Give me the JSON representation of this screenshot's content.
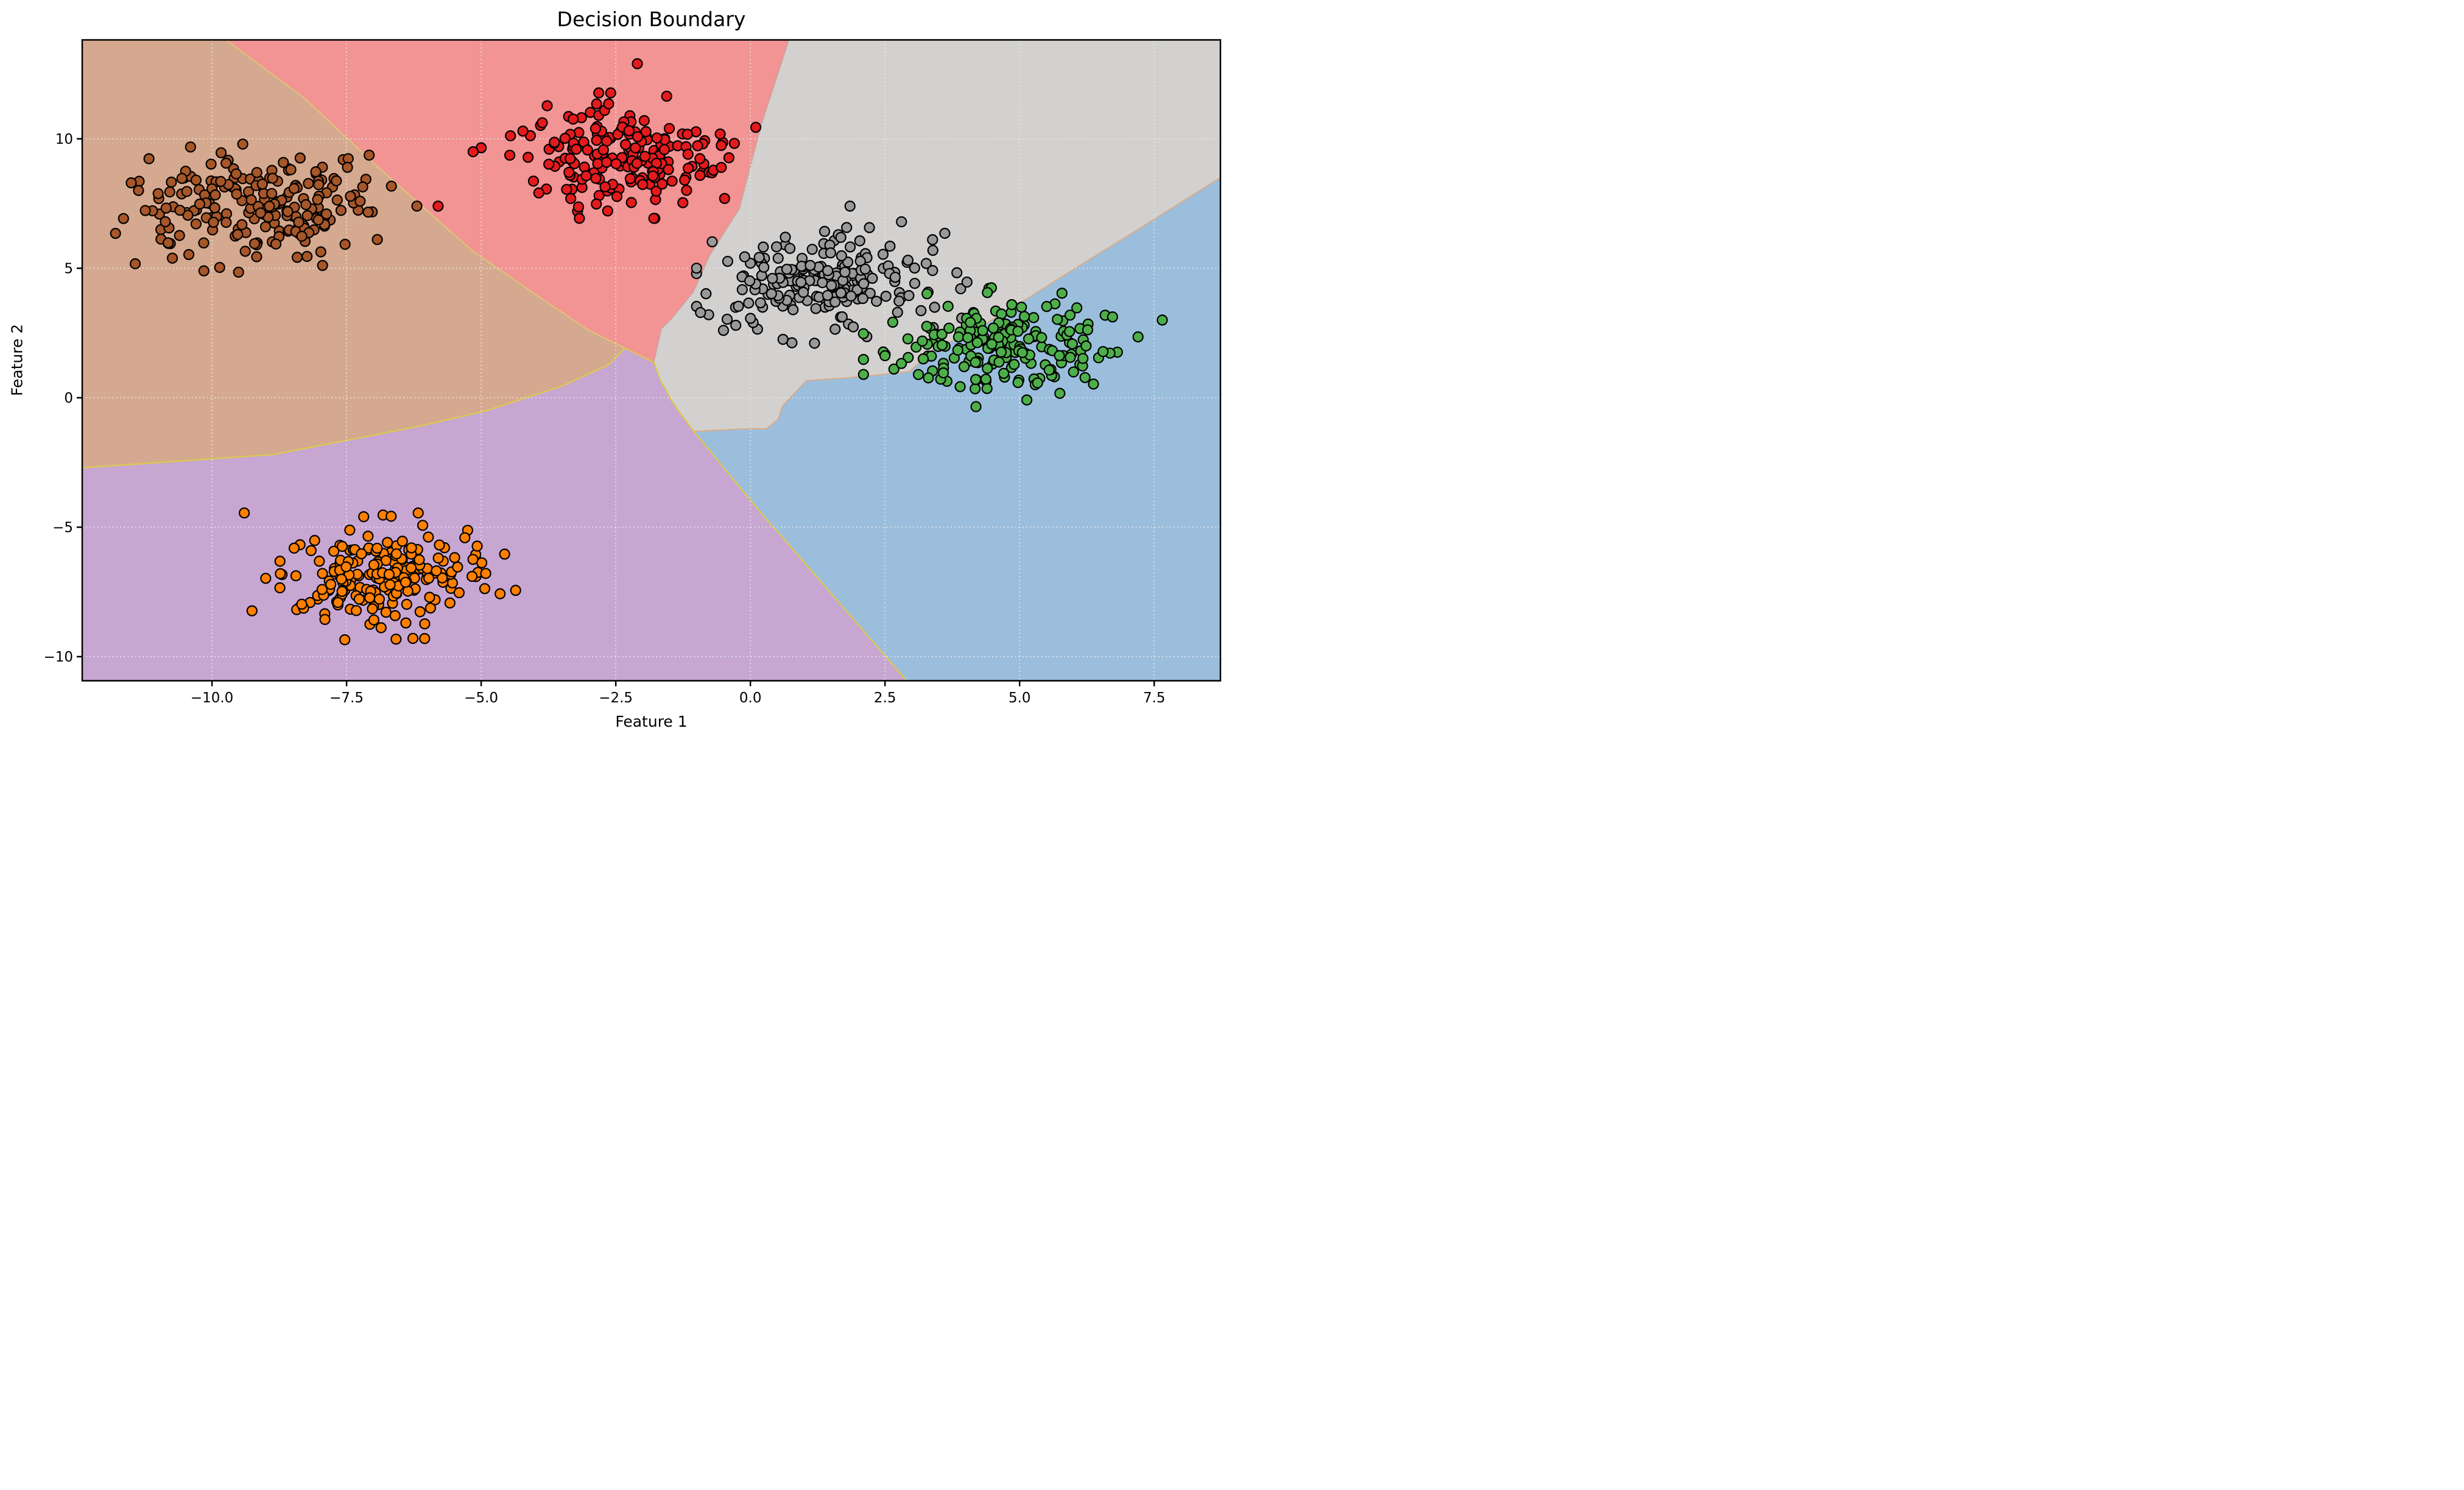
{
  "chart_data": {
    "type": "scatter",
    "subtype": "decision-boundary-classification",
    "title": "Decision Boundary",
    "xlabel": "Feature 1",
    "ylabel": "Feature 2",
    "xlim": [
      -12.41,
      8.73
    ],
    "ylim": [
      -10.93,
      13.82
    ],
    "xticks": [
      -10.0,
      -7.5,
      -5.0,
      -2.5,
      0.0,
      2.5,
      5.0,
      7.5
    ],
    "xtick_labels": [
      "−10.0",
      "−7.5",
      "−5.0",
      "−2.5",
      "0.0",
      "2.5",
      "5.0",
      "7.5"
    ],
    "yticks": [
      10,
      5,
      0,
      -5,
      -10
    ],
    "ytick_labels": [
      "10",
      "5",
      "0",
      "−5",
      "−10"
    ],
    "grid": {
      "style": "dotted",
      "color": "rgba(235,235,235,0.75)"
    },
    "axes_color": "#000000",
    "background_color": "#ffffff",
    "legend": "none",
    "marker": {
      "radius": 8,
      "edge_color": "#000000",
      "edge_width": 2.2
    },
    "regions": [
      {
        "name": "salmon",
        "class_color": "#e41a1c",
        "fill": "#f29394",
        "stroke": "none",
        "stroke_width": 0,
        "points": [
          [
            -10.05,
            14.3
          ],
          [
            0.79,
            14.3
          ],
          [
            0.72,
            13.82
          ],
          [
            0.2,
            10.5
          ],
          [
            -0.2,
            7.3
          ],
          [
            -0.75,
            5.5
          ],
          [
            -1.06,
            4.07
          ],
          [
            -1.46,
            3.05
          ],
          [
            -1.65,
            2.66
          ],
          [
            -1.79,
            1.36
          ],
          [
            -2.33,
            1.92
          ],
          [
            -3.0,
            2.6
          ],
          [
            -4.0,
            4.0
          ],
          [
            -5.16,
            5.67
          ],
          [
            -6.87,
            8.82
          ],
          [
            -8.3,
            11.6
          ]
        ]
      },
      {
        "name": "tan",
        "class_color": "#a65628",
        "fill": "#d5a98f",
        "stroke": "rgba(222,205,110,0.85)",
        "stroke_width": 2,
        "points": [
          [
            -12.9,
            14.3
          ],
          [
            -10.05,
            14.3
          ],
          [
            -8.3,
            11.6
          ],
          [
            -6.87,
            8.82
          ],
          [
            -5.16,
            5.67
          ],
          [
            -4.0,
            4.0
          ],
          [
            -3.0,
            2.6
          ],
          [
            -2.33,
            1.92
          ],
          [
            -2.63,
            1.28
          ],
          [
            -3.5,
            0.45
          ],
          [
            -4.92,
            -0.51
          ],
          [
            -6.1,
            -1.08
          ],
          [
            -8.85,
            -2.19
          ],
          [
            -12.0,
            -2.65
          ],
          [
            -12.91,
            -2.77
          ]
        ]
      },
      {
        "name": "gray",
        "class_color": "#999999",
        "fill": "#d2d1cf",
        "stroke": "rgba(160,180,160,0.5)",
        "stroke_width": 1.6,
        "points": [
          [
            0.79,
            14.3
          ],
          [
            9.1,
            14.3
          ],
          [
            9.1,
            8.95
          ],
          [
            8.73,
            8.5
          ],
          [
            7.2,
            6.5
          ],
          [
            5.78,
            4.67
          ],
          [
            5.0,
            3.64
          ],
          [
            4.42,
            2.93
          ],
          [
            3.91,
            2.33
          ],
          [
            3.41,
            1.91
          ],
          [
            2.96,
            1.01
          ],
          [
            2.0,
            0.8
          ],
          [
            1.04,
            0.66
          ],
          [
            0.59,
            -0.33
          ],
          [
            0.52,
            -0.82
          ],
          [
            0.3,
            -1.2
          ],
          [
            -0.08,
            -1.2
          ],
          [
            -1.05,
            -1.3
          ],
          [
            -1.33,
            -0.52
          ],
          [
            -1.46,
            -0.13
          ],
          [
            -1.57,
            0.31
          ],
          [
            -1.67,
            0.66
          ],
          [
            -1.79,
            1.36
          ],
          [
            -1.65,
            2.66
          ],
          [
            -1.46,
            3.05
          ],
          [
            -1.06,
            4.07
          ],
          [
            -0.75,
            5.5
          ],
          [
            -0.2,
            7.3
          ],
          [
            0.2,
            10.5
          ],
          [
            0.72,
            13.82
          ]
        ]
      },
      {
        "name": "blue",
        "class_color": "#377eb8",
        "fill": "#9bbedd",
        "stroke": "rgba(228,168,122,0.85)",
        "stroke_width": 2,
        "points": [
          [
            9.1,
            8.95
          ],
          [
            9.1,
            -11.43
          ],
          [
            3.11,
            -11.43
          ],
          [
            0.85,
            -6.0
          ],
          [
            0.57,
            -5.33
          ],
          [
            0.28,
            -4.66
          ],
          [
            -0.08,
            -3.75
          ],
          [
            -1.05,
            -1.3
          ],
          [
            -0.08,
            -1.2
          ],
          [
            0.3,
            -1.2
          ],
          [
            0.52,
            -0.82
          ],
          [
            0.59,
            -0.33
          ],
          [
            1.04,
            0.66
          ],
          [
            2.0,
            0.8
          ],
          [
            2.96,
            1.01
          ],
          [
            3.41,
            1.91
          ],
          [
            3.91,
            2.33
          ],
          [
            4.42,
            2.93
          ],
          [
            5.0,
            3.64
          ],
          [
            5.78,
            4.67
          ],
          [
            7.2,
            6.5
          ],
          [
            8.73,
            8.5
          ]
        ]
      },
      {
        "name": "purple",
        "class_color": "#984ea3",
        "fill": "#c7a6d2",
        "stroke": "#dcc752",
        "stroke_width": 2.4,
        "points": [
          [
            -12.91,
            -2.77
          ],
          [
            -12.0,
            -2.65
          ],
          [
            -8.85,
            -2.19
          ],
          [
            -6.1,
            -1.08
          ],
          [
            -4.92,
            -0.51
          ],
          [
            -3.5,
            0.45
          ],
          [
            -2.63,
            1.28
          ],
          [
            -2.33,
            1.92
          ],
          [
            -1.79,
            1.36
          ],
          [
            -1.67,
            0.66
          ],
          [
            -1.57,
            0.31
          ],
          [
            -1.46,
            -0.13
          ],
          [
            -1.33,
            -0.52
          ],
          [
            -1.05,
            -1.3
          ],
          [
            -0.08,
            -3.75
          ],
          [
            0.28,
            -4.66
          ],
          [
            0.57,
            -5.33
          ],
          [
            0.85,
            -6.0
          ],
          [
            3.11,
            -11.43
          ],
          [
            -12.91,
            -11.43
          ]
        ]
      }
    ],
    "clusters": [
      {
        "name": "brown",
        "color": "#a65628",
        "count": 200,
        "center": [
          -9.05,
          7.45
        ],
        "std": [
          1.12,
          1.02
        ],
        "seed": 101,
        "outliers": [
          [
            -11.5,
            8.3
          ],
          [
            -10.15,
            4.9
          ]
        ]
      },
      {
        "name": "red",
        "color": "#e41a1c",
        "count": 200,
        "center": [
          -2.45,
          9.35
        ],
        "std": [
          1.0,
          0.95
        ],
        "seed": 202,
        "outliers": [
          [
            -5.8,
            7.4
          ],
          [
            -5.15,
            9.5
          ],
          [
            -2.1,
            12.9
          ]
        ]
      },
      {
        "name": "gray",
        "color": "#999999",
        "count": 200,
        "center": [
          1.55,
          4.45
        ],
        "std": [
          1.0,
          0.92
        ],
        "seed": 303,
        "outliers": [
          [
            1.85,
            7.4
          ],
          [
            -0.5,
            2.6
          ]
        ]
      },
      {
        "name": "green",
        "color": "#4daf4a",
        "count": 200,
        "center": [
          4.65,
          1.95
        ],
        "std": [
          1.0,
          0.9
        ],
        "seed": 404,
        "outliers": [
          [
            7.65,
            3.0
          ],
          [
            7.2,
            2.35
          ]
        ]
      },
      {
        "name": "orange",
        "color": "#ff7f00",
        "count": 200,
        "center": [
          -6.85,
          -6.95
        ],
        "std": [
          1.0,
          0.98
        ],
        "seed": 505,
        "outliers": [
          [
            -9.4,
            -4.45
          ],
          [
            -6.05,
            -9.3
          ],
          [
            -4.36,
            -7.44
          ]
        ]
      }
    ]
  }
}
